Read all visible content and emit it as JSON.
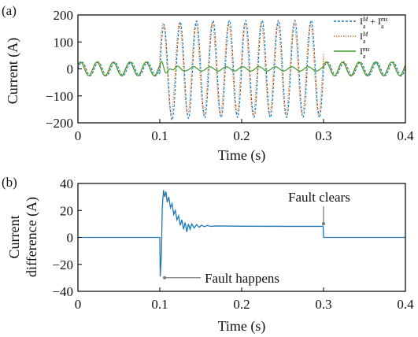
{
  "colors": {
    "sum": "#1f77b4",
    "im": "#d95f0e",
    "ims": "#3a9a2a",
    "diff": "#1f77b4",
    "axis": "#000000",
    "annot_line": "#777777"
  },
  "chart_data": [
    {
      "panel": "(a)",
      "type": "line",
      "xlabel": "Time (s)",
      "ylabel": "Current (A)",
      "xlim": [
        0,
        0.4
      ],
      "ylim": [
        -200,
        200
      ],
      "xticks": [
        0,
        0.1,
        0.2,
        0.3,
        0.4
      ],
      "xtick_labels": [
        "0",
        "0.1",
        "0.2",
        "0.3",
        "0.4"
      ],
      "yticks": [
        200,
        100,
        0,
        -100,
        -200
      ],
      "ytick_labels": [
        "200",
        "100",
        "0",
        "−100",
        "−200"
      ],
      "legend_position": "top-right",
      "legend": [
        {
          "base": "I",
          "parts": [
            {
              "t": "a",
              "sub": true
            },
            {
              "t": "M",
              "sup": true
            },
            {
              "t": " + I"
            },
            {
              "t": "a",
              "sub": true
            },
            {
              "t": "ms",
              "sup": true
            }
          ],
          "style": "dashed",
          "color_key": "sum"
        },
        {
          "base": "I",
          "parts": [
            {
              "t": "a",
              "sub": true
            },
            {
              "t": "M",
              "sup": true
            }
          ],
          "style": "dotted",
          "color_key": "im"
        },
        {
          "base": "I",
          "parts": [
            {
              "t": "a",
              "sub": true
            },
            {
              "t": "ms",
              "sup": true
            }
          ],
          "style": "solid",
          "color_key": "ims"
        }
      ],
      "series": [
        {
          "key": "sum",
          "frequency_hz": 50,
          "normal_amplitude": 25,
          "fault_amplitude": 180,
          "fault_start": 0.1,
          "fault_end": 0.3,
          "dc_offset": -20
        },
        {
          "key": "im",
          "frequency_hz": 50,
          "normal_amplitude": 27,
          "fault_amplitude": 170,
          "phase_shift_deg": 20,
          "fault_start": 0.1,
          "fault_end": 0.3
        },
        {
          "key": "ims",
          "frequency_hz": 50,
          "normal_amplitude": 25,
          "fault_amplitude": 8,
          "fault_start": 0.1,
          "fault_end": 0.3,
          "transient_peak": 25
        }
      ]
    },
    {
      "panel": "(b)",
      "type": "line",
      "xlabel": "Time (s)",
      "ylabel_line1": "Current",
      "ylabel_line2": "difference (A)",
      "xlim": [
        0,
        0.4
      ],
      "ylim": [
        -40,
        40
      ],
      "xticks": [
        0,
        0.1,
        0.2,
        0.3,
        0.4
      ],
      "xtick_labels": [
        "0",
        "0.1",
        "0.2",
        "0.3",
        "0.4"
      ],
      "yticks": [
        40,
        20,
        0,
        -20,
        -40
      ],
      "ytick_labels": [
        "40",
        "20",
        "0",
        "−20",
        "−40"
      ],
      "annotations": {
        "fault_happens": {
          "text": "Fault happens",
          "x": 0.102,
          "y": -20
        },
        "fault_clears": {
          "text": "Fault clears",
          "x": 0.3,
          "y": 9
        }
      },
      "series": [
        {
          "key": "diff",
          "points": [
            [
              0,
              0
            ],
            [
              0.1,
              0
            ],
            [
              0.1005,
              -29
            ],
            [
              0.102,
              -12
            ],
            [
              0.103,
              22
            ],
            [
              0.1045,
              35
            ],
            [
              0.106,
              30
            ],
            [
              0.1075,
              34
            ],
            [
              0.109,
              26
            ],
            [
              0.111,
              30
            ],
            [
              0.113,
              22
            ],
            [
              0.115,
              25
            ],
            [
              0.117,
              17
            ],
            [
              0.119,
              20
            ],
            [
              0.121,
              13
            ],
            [
              0.123,
              16
            ],
            [
              0.125,
              9
            ],
            [
              0.127,
              13
            ],
            [
              0.129,
              6
            ],
            [
              0.131,
              11
            ],
            [
              0.133,
              4
            ],
            [
              0.135,
              10
            ],
            [
              0.137,
              6
            ],
            [
              0.139,
              10
            ],
            [
              0.142,
              7
            ],
            [
              0.145,
              9.5
            ],
            [
              0.148,
              7.5
            ],
            [
              0.151,
              9
            ],
            [
              0.154,
              8
            ],
            [
              0.158,
              8.8
            ],
            [
              0.162,
              8.2
            ],
            [
              0.17,
              8.5
            ],
            [
              0.2,
              8.3
            ],
            [
              0.25,
              8.2
            ],
            [
              0.2995,
              8.2
            ],
            [
              0.3,
              0
            ],
            [
              0.4,
              0
            ]
          ]
        }
      ]
    }
  ]
}
